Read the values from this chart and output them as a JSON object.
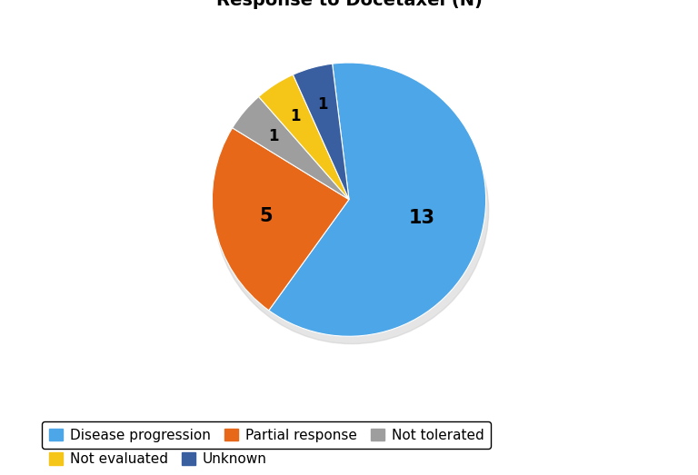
{
  "title": "Response to Docetaxel (N)",
  "title_fontsize": 14,
  "title_fontweight": "bold",
  "slices": [
    13,
    5,
    1,
    1,
    1
  ],
  "labels": [
    "Disease progression",
    "Partial response",
    "Not tolerated",
    "Not evaluated",
    "Unknown"
  ],
  "colors": [
    "#4da6e8",
    "#e8681a",
    "#9e9e9e",
    "#f5c518",
    "#3a5fa0"
  ],
  "startangle": 97,
  "legend_fontsize": 11,
  "figsize": [
    7.68,
    5.23
  ],
  "dpi": 100,
  "background_color": "#ffffff"
}
